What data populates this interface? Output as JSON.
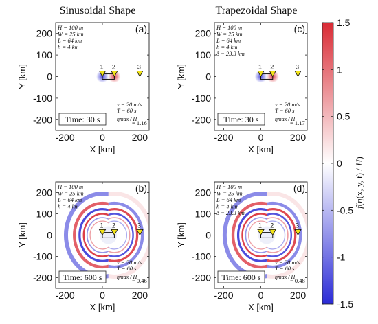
{
  "chart_data": {
    "type": "heatmap",
    "column_titles": [
      "Sinusoidal Shape",
      "Trapezoidal Shape"
    ],
    "xlabel": "X [km]",
    "ylabel": "Y [km]",
    "xlim": [
      -250,
      250
    ],
    "ylim": [
      -250,
      250
    ],
    "xticks": [
      -200,
      0,
      200
    ],
    "yticks": [
      -200,
      -100,
      0,
      100,
      200
    ],
    "tick_labels": {
      "x": [
        "-200",
        "0",
        "200"
      ],
      "y": [
        "-200",
        "-100",
        "0",
        "100",
        "200"
      ]
    },
    "stations": [
      {
        "id": "1",
        "x": 0,
        "y": 10
      },
      {
        "id": "2",
        "x": 64,
        "y": 10
      },
      {
        "id": "3",
        "x": 200,
        "y": 10
      }
    ],
    "source_rectangle": {
      "x0": 0,
      "x1": 64,
      "y0": -12.5,
      "y1": 12.5
    },
    "colorbar": {
      "min": -1.5,
      "max": 1.5,
      "ticks": [
        1.5,
        1,
        0.5,
        0,
        -0.5,
        -1,
        -1.5
      ],
      "tick_labels": [
        "1.5",
        "1",
        "0.5",
        "0",
        "-0.5",
        "-1",
        "-1.5"
      ],
      "label": "f( η(x,y,t) / H )",
      "colors": {
        "negative": "#2b2bd6",
        "zero": "#ffffff",
        "positive": "#d92b35"
      }
    },
    "panels": [
      {
        "letter": "(a)",
        "column": 0,
        "row": 0,
        "time": "Time: 30 s",
        "time_s": 30,
        "params_top": [
          "H = 100 m",
          "W = 25 km",
          "L = 64 km",
          "h = 4 km"
        ],
        "params_bottom": [
          "v = 20 m/s",
          "T = 60 s"
        ],
        "ratio_label": "ηmax / H",
        "ratio_value": "= 1.16",
        "ratio": 1.16
      },
      {
        "letter": "(c)",
        "column": 1,
        "row": 0,
        "time": "Time: 30 s",
        "time_s": 30,
        "params_top": [
          "H = 100 m",
          "W = 25 km",
          "L = 64 km",
          "h = 4 km",
          "δ = 23.3 km"
        ],
        "params_bottom": [
          "v = 20 m/s",
          "T = 60 s"
        ],
        "ratio_label": "ηmax / H",
        "ratio_value": "= 1.17",
        "ratio": 1.17
      },
      {
        "letter": "(b)",
        "column": 0,
        "row": 1,
        "time": "Time: 600 s",
        "time_s": 600,
        "params_top": [
          "H = 100 m",
          "W = 25 km",
          "L = 64 km",
          "h = 4 km"
        ],
        "params_bottom": [
          "v = 20 m/s",
          "T = 60 s"
        ],
        "ratio_label": "ηmax / H",
        "ratio_value": "= 0.46",
        "ratio": 0.46
      },
      {
        "letter": "(d)",
        "column": 1,
        "row": 1,
        "time": "Time: 600 s",
        "time_s": 600,
        "params_top": [
          "H = 100 m",
          "W = 25 km",
          "L = 64 km",
          "h = 4 km",
          "δ = 23.3 km"
        ],
        "params_bottom": [
          "v = 20 m/s",
          "T = 60 s"
        ],
        "ratio_label": "ηmax / H",
        "ratio_value": "= 0.48",
        "ratio": 0.48
      }
    ]
  }
}
